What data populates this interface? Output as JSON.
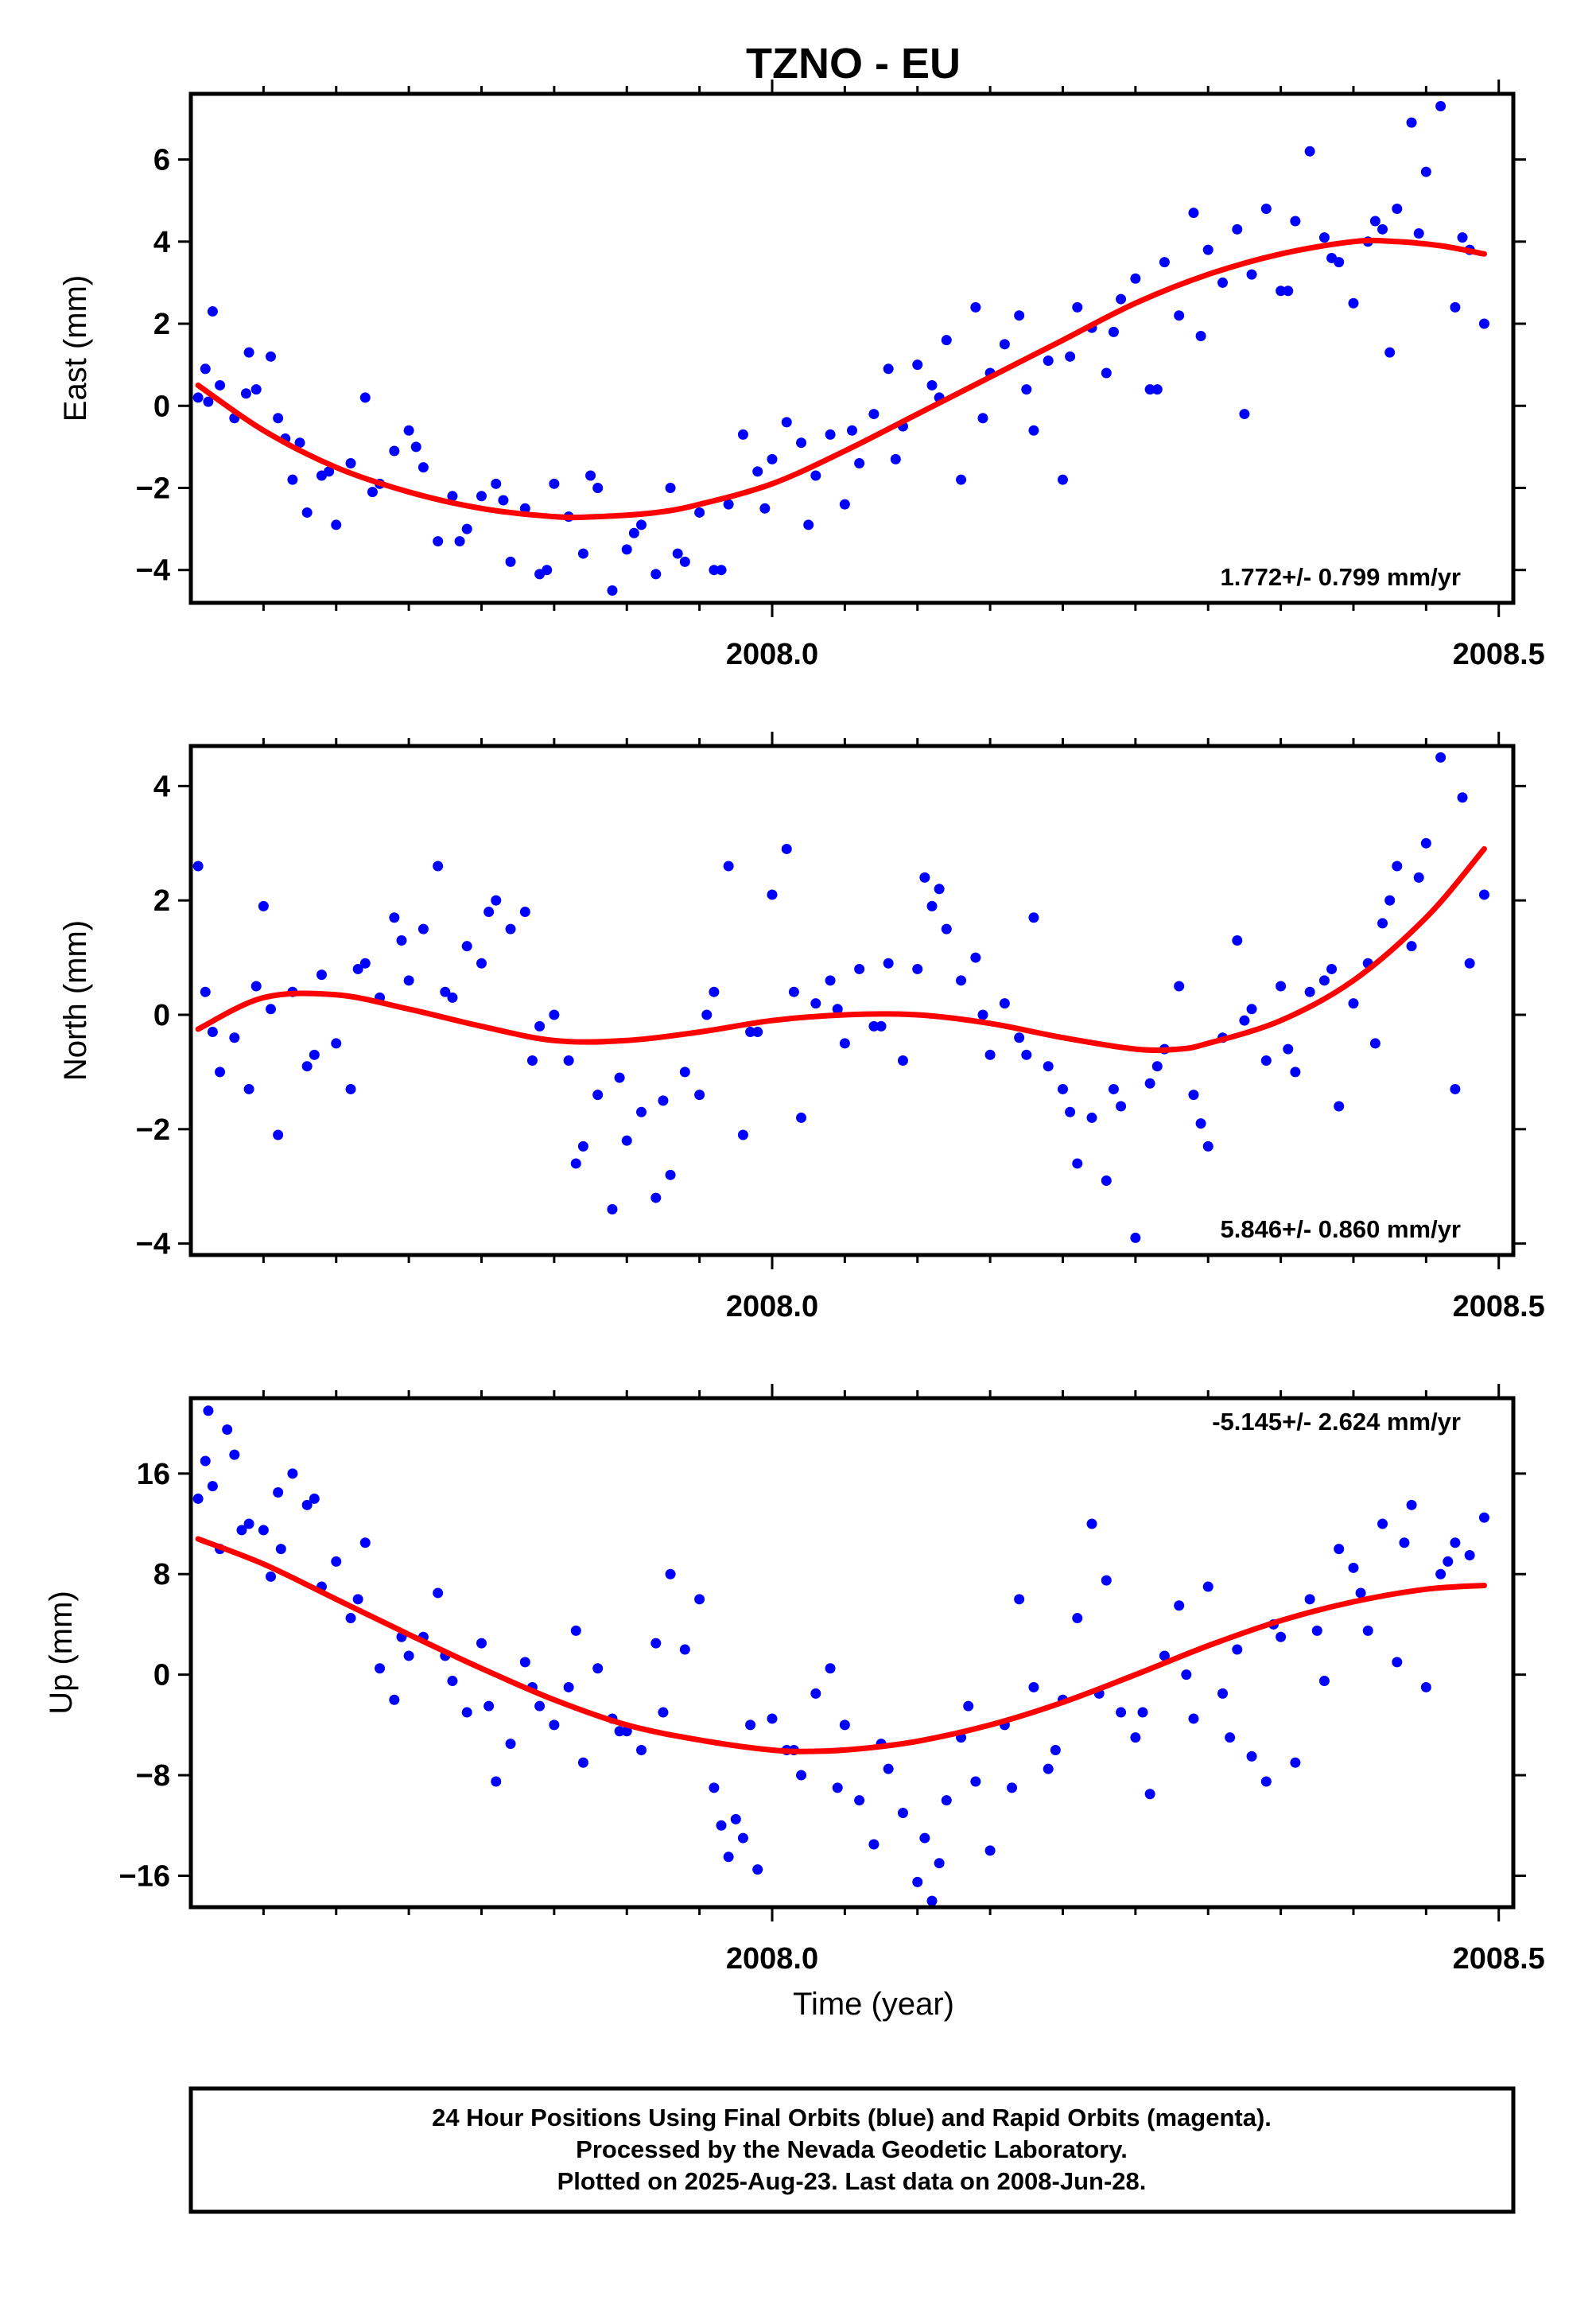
{
  "footer": {
    "lines": [
      "24 Hour Positions Using Final Orbits (blue) and Rapid Orbits (magenta).",
      "Processed by the Nevada Geodetic Laboratory.",
      "Plotted on 2025-Aug-23. Last data on 2008-Jun-28."
    ]
  },
  "colors": {
    "points": "#0000ff",
    "fit": "#ff0000",
    "frame": "#000000"
  },
  "chart_data": [
    {
      "type": "scatter",
      "title": "TZNO - EU",
      "ylabel": "East (mm)",
      "xlabel": "",
      "xlim": [
        2007.6,
        2008.51
      ],
      "ylim": [
        -4.8,
        7.6
      ],
      "xticks": [
        2008.0,
        2008.5
      ],
      "xtick_labels": [
        "2008.0",
        "2008.5"
      ],
      "yticks": [
        -4,
        -2,
        0,
        2,
        4,
        6
      ],
      "ytick_labels": [
        "−4",
        "−2",
        "0",
        "2",
        "4",
        "6"
      ],
      "rate": "1.772+/- 0.799 mm/yr",
      "rate_position": "bottom-right",
      "fit": {
        "x": [
          2007.605,
          2007.65,
          2007.7,
          2007.75,
          2007.8,
          2007.85,
          2007.88,
          2007.92,
          2007.95,
          2008.0,
          2008.05,
          2008.1,
          2008.15,
          2008.2,
          2008.25,
          2008.3,
          2008.35,
          2008.4,
          2008.43,
          2008.46,
          2008.49
        ],
        "y": [
          0.5,
          -0.6,
          -1.5,
          -2.1,
          -2.5,
          -2.7,
          -2.7,
          -2.6,
          -2.4,
          -1.9,
          -1.1,
          -0.2,
          0.7,
          1.6,
          2.5,
          3.2,
          3.7,
          4.0,
          4.0,
          3.9,
          3.7
        ]
      },
      "points": {
        "x": [
          2007.605,
          2007.61,
          2007.615,
          2007.62,
          2007.63,
          2007.64,
          2007.645,
          2007.655,
          2007.66,
          2007.67,
          2007.675,
          2007.68,
          2007.69,
          2007.7,
          2007.71,
          2007.72,
          2007.73,
          2007.74,
          2007.75,
          2007.76,
          2007.77,
          2007.78,
          2007.79,
          2007.8,
          2007.81,
          2007.82,
          2007.83,
          2007.84,
          2007.85,
          2007.86,
          2007.87,
          2007.88,
          2007.89,
          2007.9,
          2007.91,
          2007.92,
          2007.93,
          2007.94,
          2007.95,
          2007.96,
          2007.97,
          2007.98,
          2007.99,
          2008.0,
          2008.01,
          2008.02,
          2008.03,
          2008.04,
          2008.05,
          2008.06,
          2008.07,
          2008.08,
          2008.09,
          2008.1,
          2008.11,
          2008.12,
          2008.13,
          2008.14,
          2008.15,
          2008.16,
          2008.17,
          2008.18,
          2008.19,
          2008.2,
          2008.21,
          2008.22,
          2008.23,
          2008.24,
          2008.25,
          2008.26,
          2008.27,
          2008.28,
          2008.29,
          2008.3,
          2008.31,
          2008.32,
          2008.33,
          2008.34,
          2008.35,
          2008.36,
          2008.37,
          2008.38,
          2008.39,
          2008.4,
          2008.41,
          2008.42,
          2008.425,
          2008.43,
          2008.44,
          2008.45,
          2008.46,
          2008.47,
          2008.48,
          2008.49,
          2007.612,
          2007.638,
          2007.665,
          2007.695,
          2007.725,
          2007.755,
          2007.785,
          2007.815,
          2007.845,
          2007.875,
          2007.905,
          2007.935,
          2007.965,
          2007.995,
          2008.025,
          2008.055,
          2008.085,
          2008.115,
          2008.145,
          2008.175,
          2008.205,
          2008.235,
          2008.265,
          2008.295,
          2008.325,
          2008.355,
          2008.385,
          2008.415,
          2008.445,
          2008.475
        ],
        "y": [
          0.2,
          0.9,
          2.3,
          0.5,
          -0.3,
          1.3,
          0.4,
          1.2,
          -0.3,
          -1.8,
          -0.9,
          -2.6,
          -1.7,
          -2.9,
          -1.4,
          0.2,
          -1.9,
          -1.1,
          -0.6,
          -1.5,
          -3.3,
          -2.2,
          -3.0,
          -2.2,
          -1.9,
          -3.8,
          -2.5,
          -4.1,
          -1.9,
          -2.7,
          -3.6,
          -2.0,
          -4.5,
          -3.5,
          -2.9,
          -4.1,
          -2.0,
          -3.8,
          -2.6,
          -4.0,
          -2.4,
          -0.7,
          -1.6,
          -1.3,
          -0.4,
          -0.9,
          -1.7,
          -0.7,
          -2.4,
          -1.4,
          -0.2,
          0.9,
          -0.5,
          1.0,
          0.5,
          1.6,
          -1.8,
          2.4,
          0.8,
          1.5,
          2.2,
          -0.6,
          1.1,
          -1.8,
          2.4,
          1.9,
          0.8,
          2.6,
          3.1,
          0.4,
          3.5,
          2.2,
          4.7,
          3.8,
          3.0,
          4.3,
          3.2,
          4.8,
          2.8,
          4.5,
          6.2,
          4.1,
          3.5,
          2.5,
          4.0,
          4.3,
          1.3,
          4.8,
          6.9,
          5.7,
          7.3,
          2.4,
          3.8,
          2.0,
          0.1,
          0.3,
          -0.8,
          -1.6,
          -2.1,
          -1.0,
          -3.3,
          -2.3,
          -4.0,
          -1.7,
          -3.1,
          -3.6,
          -4.0,
          -2.5,
          -2.9,
          -0.6,
          -1.3,
          0.2,
          -0.3,
          0.4,
          1.2,
          1.8,
          0.4,
          1.7,
          -0.2,
          2.8,
          3.6,
          4.5,
          4.2,
          4.1
        ]
      }
    },
    {
      "type": "scatter",
      "title": "",
      "ylabel": "North (mm)",
      "xlabel": "",
      "xlim": [
        2007.6,
        2008.51
      ],
      "ylim": [
        -4.2,
        4.7
      ],
      "xticks": [
        2008.0,
        2008.5
      ],
      "xtick_labels": [
        "2008.0",
        "2008.5"
      ],
      "yticks": [
        -4,
        -2,
        0,
        2,
        4
      ],
      "ytick_labels": [
        "−4",
        "−2",
        "0",
        "2",
        "4"
      ],
      "rate": "5.846+/- 0.860 mm/yr",
      "rate_position": "bottom-right",
      "fit": {
        "x": [
          2007.605,
          2007.65,
          2007.7,
          2007.75,
          2007.8,
          2007.85,
          2007.9,
          2007.95,
          2008.0,
          2008.05,
          2008.1,
          2008.15,
          2008.2,
          2008.25,
          2008.28,
          2008.3,
          2008.35,
          2008.4,
          2008.45,
          2008.49
        ],
        "y": [
          -0.25,
          0.3,
          0.35,
          0.1,
          -0.2,
          -0.45,
          -0.45,
          -0.3,
          -0.1,
          0.0,
          0.0,
          -0.15,
          -0.4,
          -0.6,
          -0.6,
          -0.5,
          -0.1,
          0.6,
          1.7,
          2.9
        ]
      },
      "points": {
        "x": [
          2007.605,
          2007.61,
          2007.62,
          2007.63,
          2007.64,
          2007.645,
          2007.65,
          2007.66,
          2007.67,
          2007.68,
          2007.69,
          2007.7,
          2007.71,
          2007.72,
          2007.73,
          2007.74,
          2007.75,
          2007.76,
          2007.77,
          2007.78,
          2007.79,
          2007.8,
          2007.81,
          2007.82,
          2007.83,
          2007.84,
          2007.85,
          2007.86,
          2007.87,
          2007.88,
          2007.89,
          2007.9,
          2007.91,
          2007.92,
          2007.93,
          2007.94,
          2007.95,
          2007.96,
          2007.97,
          2007.98,
          2007.99,
          2008.0,
          2008.01,
          2008.02,
          2008.03,
          2008.04,
          2008.05,
          2008.06,
          2008.07,
          2008.08,
          2008.09,
          2008.1,
          2008.105,
          2008.11,
          2008.12,
          2008.13,
          2008.14,
          2008.15,
          2008.16,
          2008.17,
          2008.18,
          2008.19,
          2008.2,
          2008.21,
          2008.22,
          2008.23,
          2008.24,
          2008.25,
          2008.26,
          2008.27,
          2008.28,
          2008.29,
          2008.3,
          2008.31,
          2008.32,
          2008.33,
          2008.34,
          2008.35,
          2008.36,
          2008.37,
          2008.38,
          2008.39,
          2008.4,
          2008.41,
          2008.42,
          2008.425,
          2008.43,
          2008.44,
          2008.45,
          2008.46,
          2008.47,
          2008.48,
          2008.49,
          2007.615,
          2007.655,
          2007.685,
          2007.715,
          2007.745,
          2007.775,
          2007.805,
          2007.835,
          2007.865,
          2007.895,
          2007.925,
          2007.955,
          2007.985,
          2008.015,
          2008.045,
          2008.075,
          2008.115,
          2008.145,
          2008.175,
          2008.205,
          2008.235,
          2008.265,
          2008.295,
          2008.325,
          2008.355,
          2008.385,
          2008.415,
          2008.445,
          2008.475
        ],
        "y": [
          2.6,
          0.4,
          -1.0,
          -0.4,
          -1.3,
          0.5,
          1.9,
          -2.1,
          0.4,
          -0.9,
          0.7,
          -0.5,
          -1.3,
          0.9,
          0.3,
          1.7,
          0.6,
          1.5,
          2.6,
          0.3,
          1.2,
          0.9,
          2.0,
          1.5,
          1.8,
          -0.2,
          0.0,
          -0.8,
          -2.3,
          -1.4,
          -3.4,
          -2.2,
          -1.7,
          -3.2,
          -2.8,
          -1.0,
          -1.4,
          0.4,
          2.6,
          -2.1,
          -0.3,
          2.1,
          2.9,
          -1.8,
          0.2,
          0.6,
          -0.5,
          0.8,
          -0.2,
          0.9,
          -0.8,
          0.8,
          2.4,
          1.9,
          1.5,
          0.6,
          1.0,
          -0.7,
          0.2,
          -0.4,
          1.7,
          -0.9,
          -1.3,
          -2.6,
          -1.8,
          -2.9,
          -1.6,
          -3.9,
          -1.2,
          -0.6,
          0.5,
          -1.4,
          -2.3,
          -0.4,
          1.3,
          0.1,
          -0.8,
          0.5,
          -1.0,
          0.4,
          0.6,
          -1.6,
          0.2,
          0.9,
          1.6,
          2.0,
          2.6,
          1.2,
          3.0,
          4.5,
          -1.3,
          0.9,
          2.1,
          -0.3,
          0.1,
          -0.7,
          0.8,
          1.3,
          0.4,
          1.8,
          -0.8,
          -2.6,
          -1.1,
          -1.5,
          0.0,
          -0.3,
          0.4,
          0.1,
          -0.2,
          2.2,
          0.0,
          -0.7,
          -1.7,
          -1.3,
          -0.9,
          -1.9,
          -0.1,
          -0.6,
          0.8,
          -0.5,
          2.4,
          3.8
        ]
      }
    },
    {
      "type": "scatter",
      "title": "",
      "ylabel": "Up (mm)",
      "xlabel": "Time (year)",
      "xlim": [
        2007.6,
        2008.51
      ],
      "ylim": [
        -18.5,
        22.0
      ],
      "xticks": [
        2008.0,
        2008.5
      ],
      "xtick_labels": [
        "2008.0",
        "2008.5"
      ],
      "yticks": [
        -16,
        -8,
        0,
        8,
        16
      ],
      "ytick_labels": [
        "−16",
        "−8",
        "0",
        "8",
        "16"
      ],
      "rate": "-5.145+/- 2.624 mm/yr",
      "rate_position": "top-right",
      "fit": {
        "x": [
          2007.605,
          2007.65,
          2007.7,
          2007.75,
          2007.8,
          2007.85,
          2007.9,
          2007.95,
          2008.0,
          2008.03,
          2008.06,
          2008.1,
          2008.15,
          2008.2,
          2008.25,
          2008.3,
          2008.35,
          2008.4,
          2008.45,
          2008.49
        ],
        "y": [
          10.8,
          8.8,
          6.0,
          3.2,
          0.5,
          -2.0,
          -4.0,
          -5.2,
          -6.0,
          -6.1,
          -5.9,
          -5.3,
          -4.0,
          -2.2,
          0.0,
          2.3,
          4.3,
          5.8,
          6.8,
          7.1
        ]
      },
      "points": {
        "x": [
          2007.605,
          2007.61,
          2007.615,
          2007.62,
          2007.625,
          2007.63,
          2007.64,
          2007.65,
          2007.655,
          2007.66,
          2007.67,
          2007.68,
          2007.69,
          2007.7,
          2007.71,
          2007.72,
          2007.73,
          2007.74,
          2007.75,
          2007.76,
          2007.77,
          2007.78,
          2007.79,
          2007.8,
          2007.81,
          2007.82,
          2007.83,
          2007.84,
          2007.85,
          2007.86,
          2007.87,
          2007.88,
          2007.89,
          2007.9,
          2007.91,
          2007.92,
          2007.93,
          2007.94,
          2007.95,
          2007.96,
          2007.965,
          2007.97,
          2007.975,
          2007.98,
          2007.99,
          2008.0,
          2008.01,
          2008.02,
          2008.03,
          2008.04,
          2008.05,
          2008.06,
          2008.07,
          2008.08,
          2008.09,
          2008.1,
          2008.105,
          2008.11,
          2008.115,
          2008.12,
          2008.13,
          2008.14,
          2008.15,
          2008.16,
          2008.17,
          2008.18,
          2008.19,
          2008.2,
          2008.21,
          2008.22,
          2008.23,
          2008.24,
          2008.25,
          2008.26,
          2008.27,
          2008.28,
          2008.29,
          2008.3,
          2008.31,
          2008.32,
          2008.33,
          2008.34,
          2008.35,
          2008.36,
          2008.37,
          2008.38,
          2008.39,
          2008.4,
          2008.41,
          2008.42,
          2008.43,
          2008.44,
          2008.45,
          2008.46,
          2008.47,
          2008.48,
          2008.49,
          2007.612,
          2007.635,
          2007.662,
          2007.685,
          2007.715,
          2007.745,
          2007.775,
          2007.805,
          2007.835,
          2007.865,
          2007.895,
          2007.925,
          2007.985,
          2008.015,
          2008.045,
          2008.075,
          2008.135,
          2008.165,
          2008.195,
          2008.225,
          2008.255,
          2008.285,
          2008.315,
          2008.345,
          2008.375,
          2008.405,
          2008.435,
          2008.465
        ],
        "y": [
          14.0,
          17.0,
          15.0,
          10.0,
          19.5,
          17.5,
          12.0,
          11.5,
          7.8,
          14.5,
          16.0,
          13.5,
          7.0,
          9.0,
          4.5,
          10.5,
          0.5,
          -2.0,
          1.5,
          3.0,
          6.5,
          -0.5,
          -3.0,
          2.5,
          -8.5,
          -5.5,
          1.0,
          -2.5,
          -4.0,
          -1.0,
          -7.0,
          0.5,
          -3.5,
          -4.5,
          -6.0,
          2.5,
          8.0,
          2.0,
          6.0,
          -9.0,
          -12.0,
          -14.5,
          -11.5,
          -13.0,
          -15.5,
          -3.5,
          -6.0,
          -8.0,
          -1.5,
          0.5,
          -4.0,
          -10.0,
          -13.5,
          -7.5,
          -11.0,
          -16.5,
          -13.0,
          -18.0,
          -15.0,
          -10.0,
          -5.0,
          -8.5,
          -14.0,
          -4.0,
          6.0,
          -1.0,
          -7.5,
          -2.0,
          4.5,
          12.0,
          7.5,
          -3.0,
          -5.0,
          -9.5,
          1.5,
          5.5,
          -3.5,
          7.0,
          -1.5,
          2.0,
          -6.5,
          -8.5,
          3.0,
          -7.0,
          6.0,
          -0.5,
          10.0,
          8.5,
          3.5,
          12.0,
          1.0,
          13.5,
          -1.0,
          8.0,
          10.5,
          9.5,
          12.5,
          21.0,
          11.5,
          10.0,
          14.0,
          6.0,
          3.0,
          1.5,
          -2.5,
          -1.0,
          3.5,
          -4.5,
          -3.0,
          -4.0,
          -6.0,
          -9.0,
          -5.5,
          -2.5,
          -9.0,
          -6.0,
          -1.5,
          -3.0,
          0.0,
          -5.0,
          4.0,
          3.5,
          6.5,
          10.5,
          9.0
        ]
      }
    }
  ]
}
